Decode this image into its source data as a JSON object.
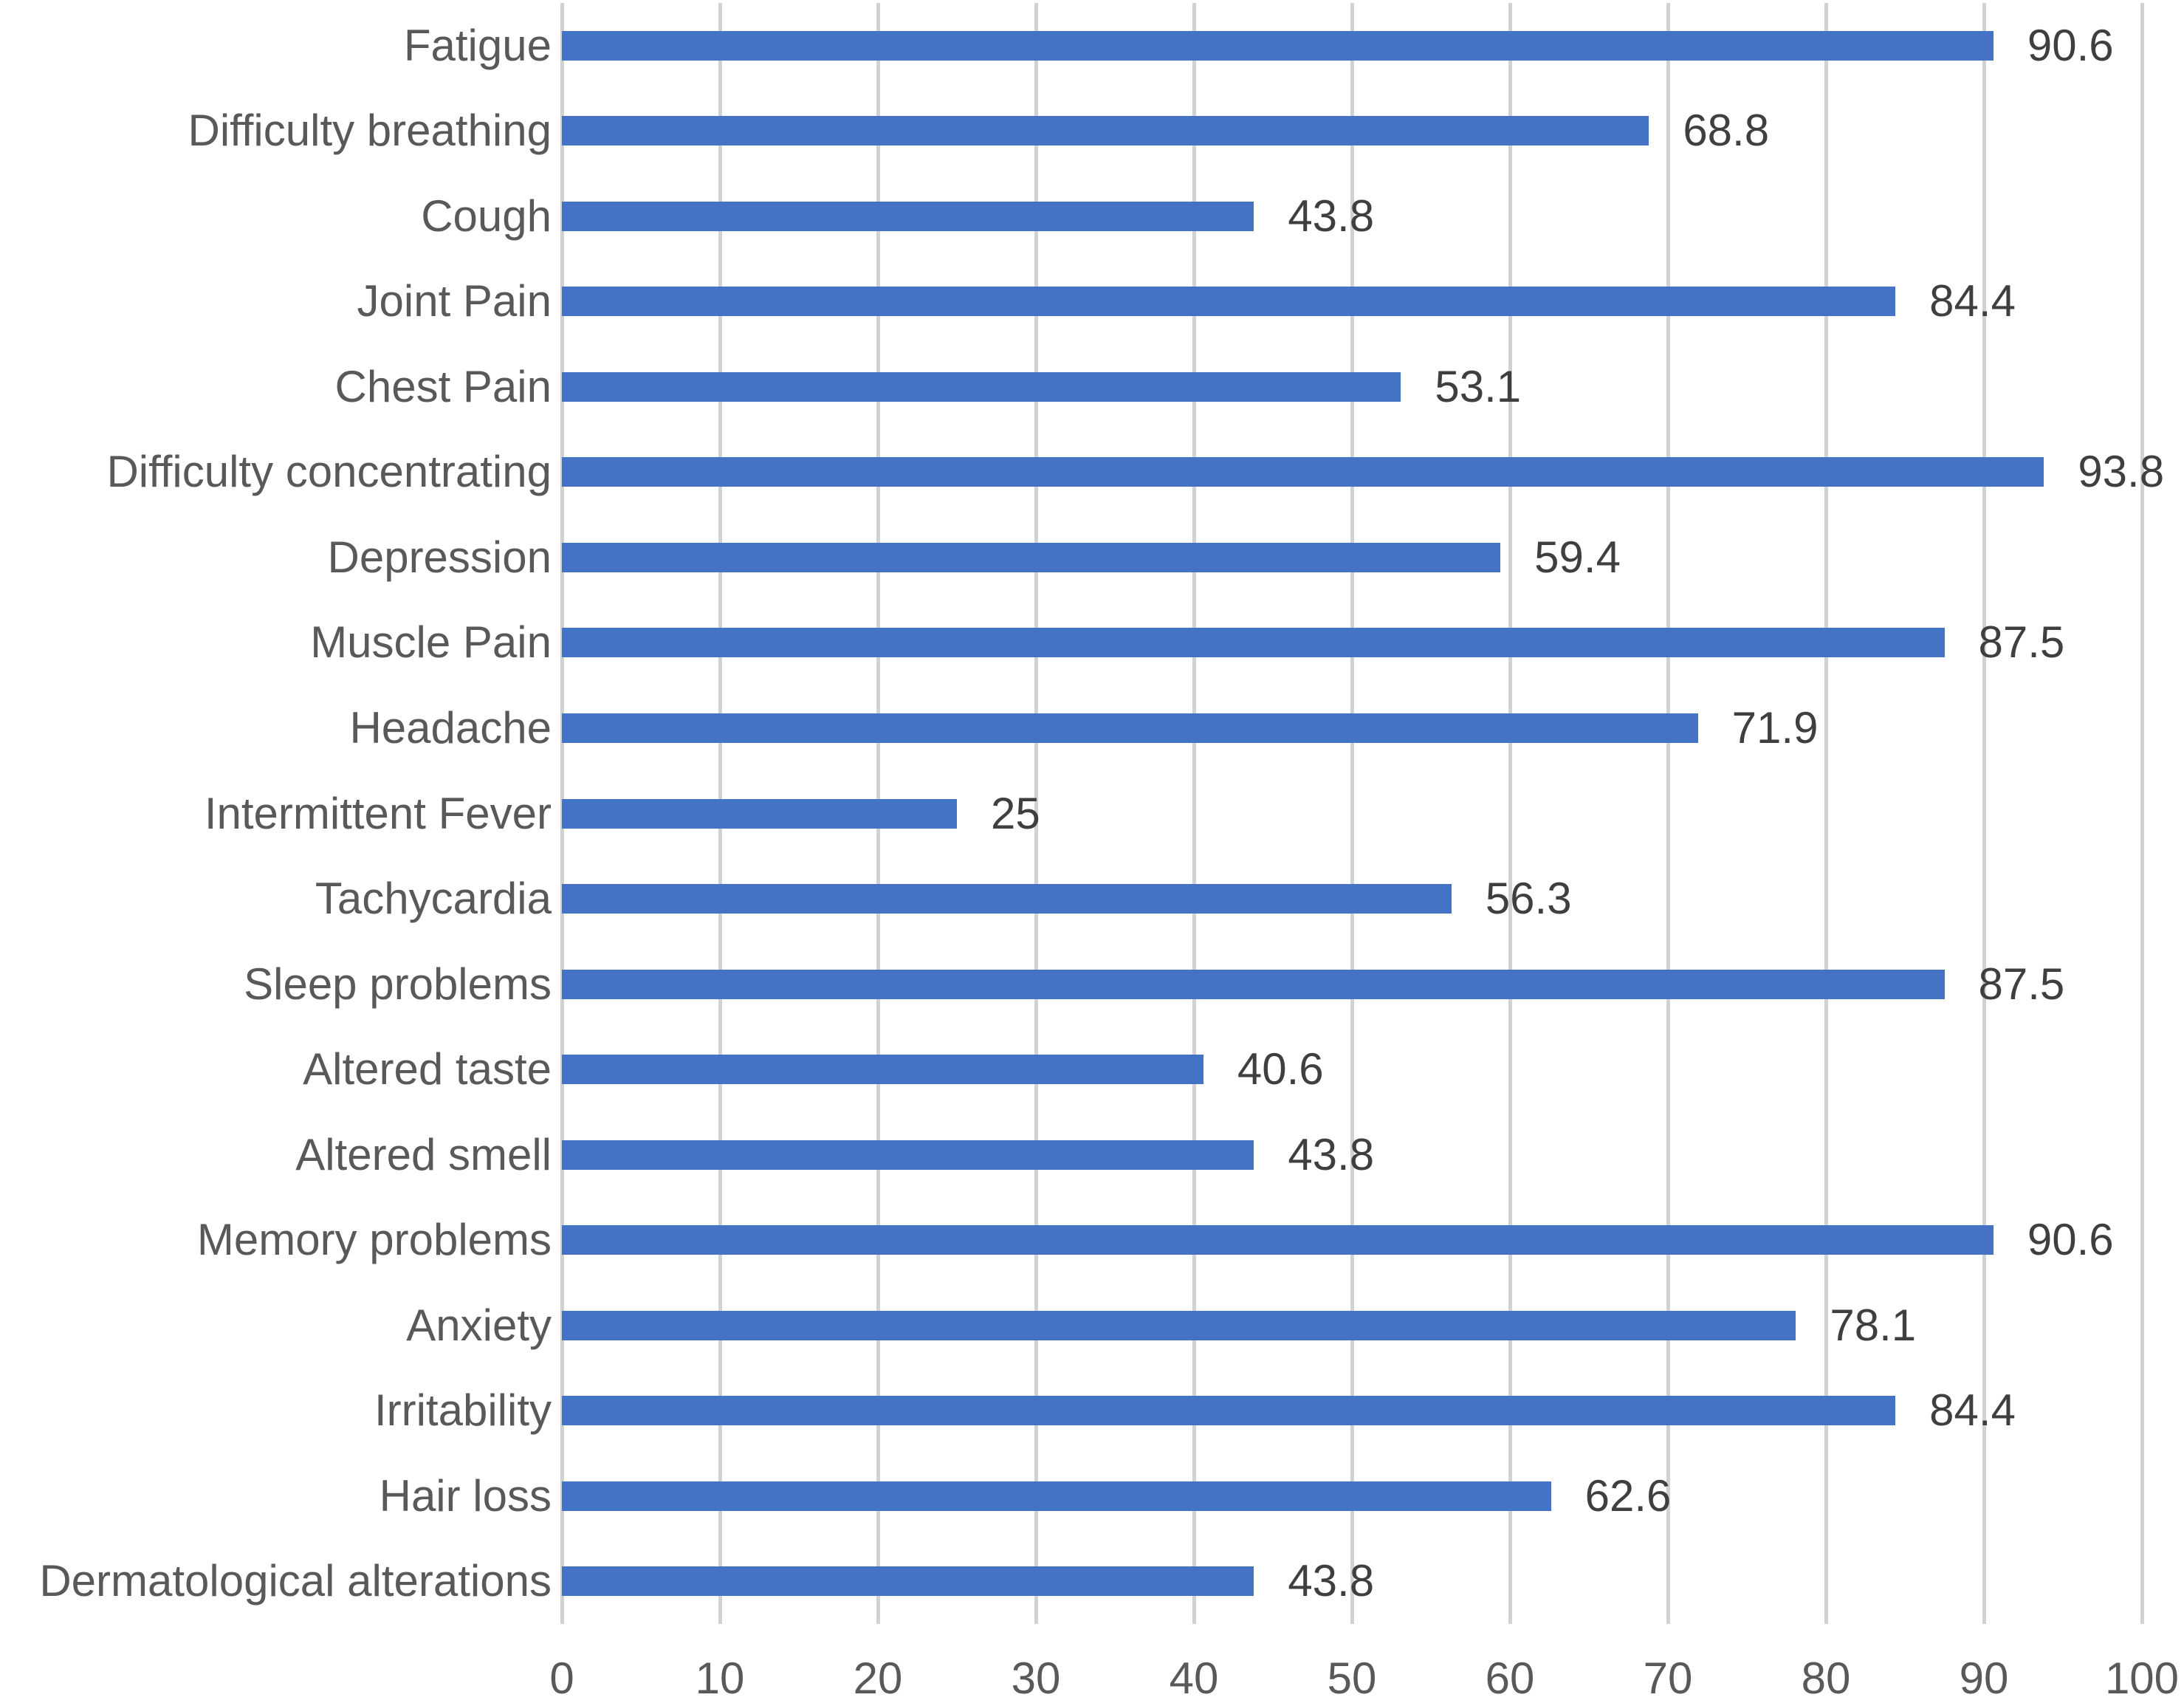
{
  "chart_data": {
    "type": "bar",
    "orientation": "horizontal",
    "title": "",
    "xlabel": "",
    "ylabel": "",
    "categories": [
      "Fatigue",
      "Difficulty breathing",
      "Cough",
      "Joint Pain",
      "Chest Pain",
      "Difficulty concentrating",
      "Depression",
      "Muscle Pain",
      "Headache",
      "Intermittent Fever",
      "Tachycardia",
      "Sleep problems",
      "Altered taste",
      "Altered smell",
      "Memory problems",
      "Anxiety",
      "Irritability",
      "Hair loss",
      "Dermatological alterations"
    ],
    "values": [
      90.6,
      68.8,
      43.8,
      84.4,
      53.1,
      93.8,
      59.4,
      87.5,
      71.9,
      25,
      56.3,
      87.5,
      40.6,
      43.8,
      90.6,
      78.1,
      84.4,
      62.6,
      43.8
    ],
    "value_labels": [
      "90.6",
      "68.8",
      "43.8",
      "84.4",
      "53.1",
      "93.8",
      "59.4",
      "87.5",
      "71.9",
      "25",
      "56.3",
      "87.5",
      "40.6",
      "43.8",
      "90.6",
      "78.1",
      "84.4",
      "62.6",
      "43.8"
    ],
    "x_ticks": [
      0,
      10,
      20,
      30,
      40,
      50,
      60,
      70,
      80,
      90,
      100
    ],
    "xlim": [
      0,
      100
    ],
    "grid": "vertical-gridlines-on",
    "legend": "none",
    "colors": {
      "bar": "#4472C4",
      "gridline": "#D2D2D2",
      "category_label": "#595959",
      "value_label": "#3F3F3F",
      "tick_label": "#595959",
      "background": "#FFFFFF"
    }
  }
}
